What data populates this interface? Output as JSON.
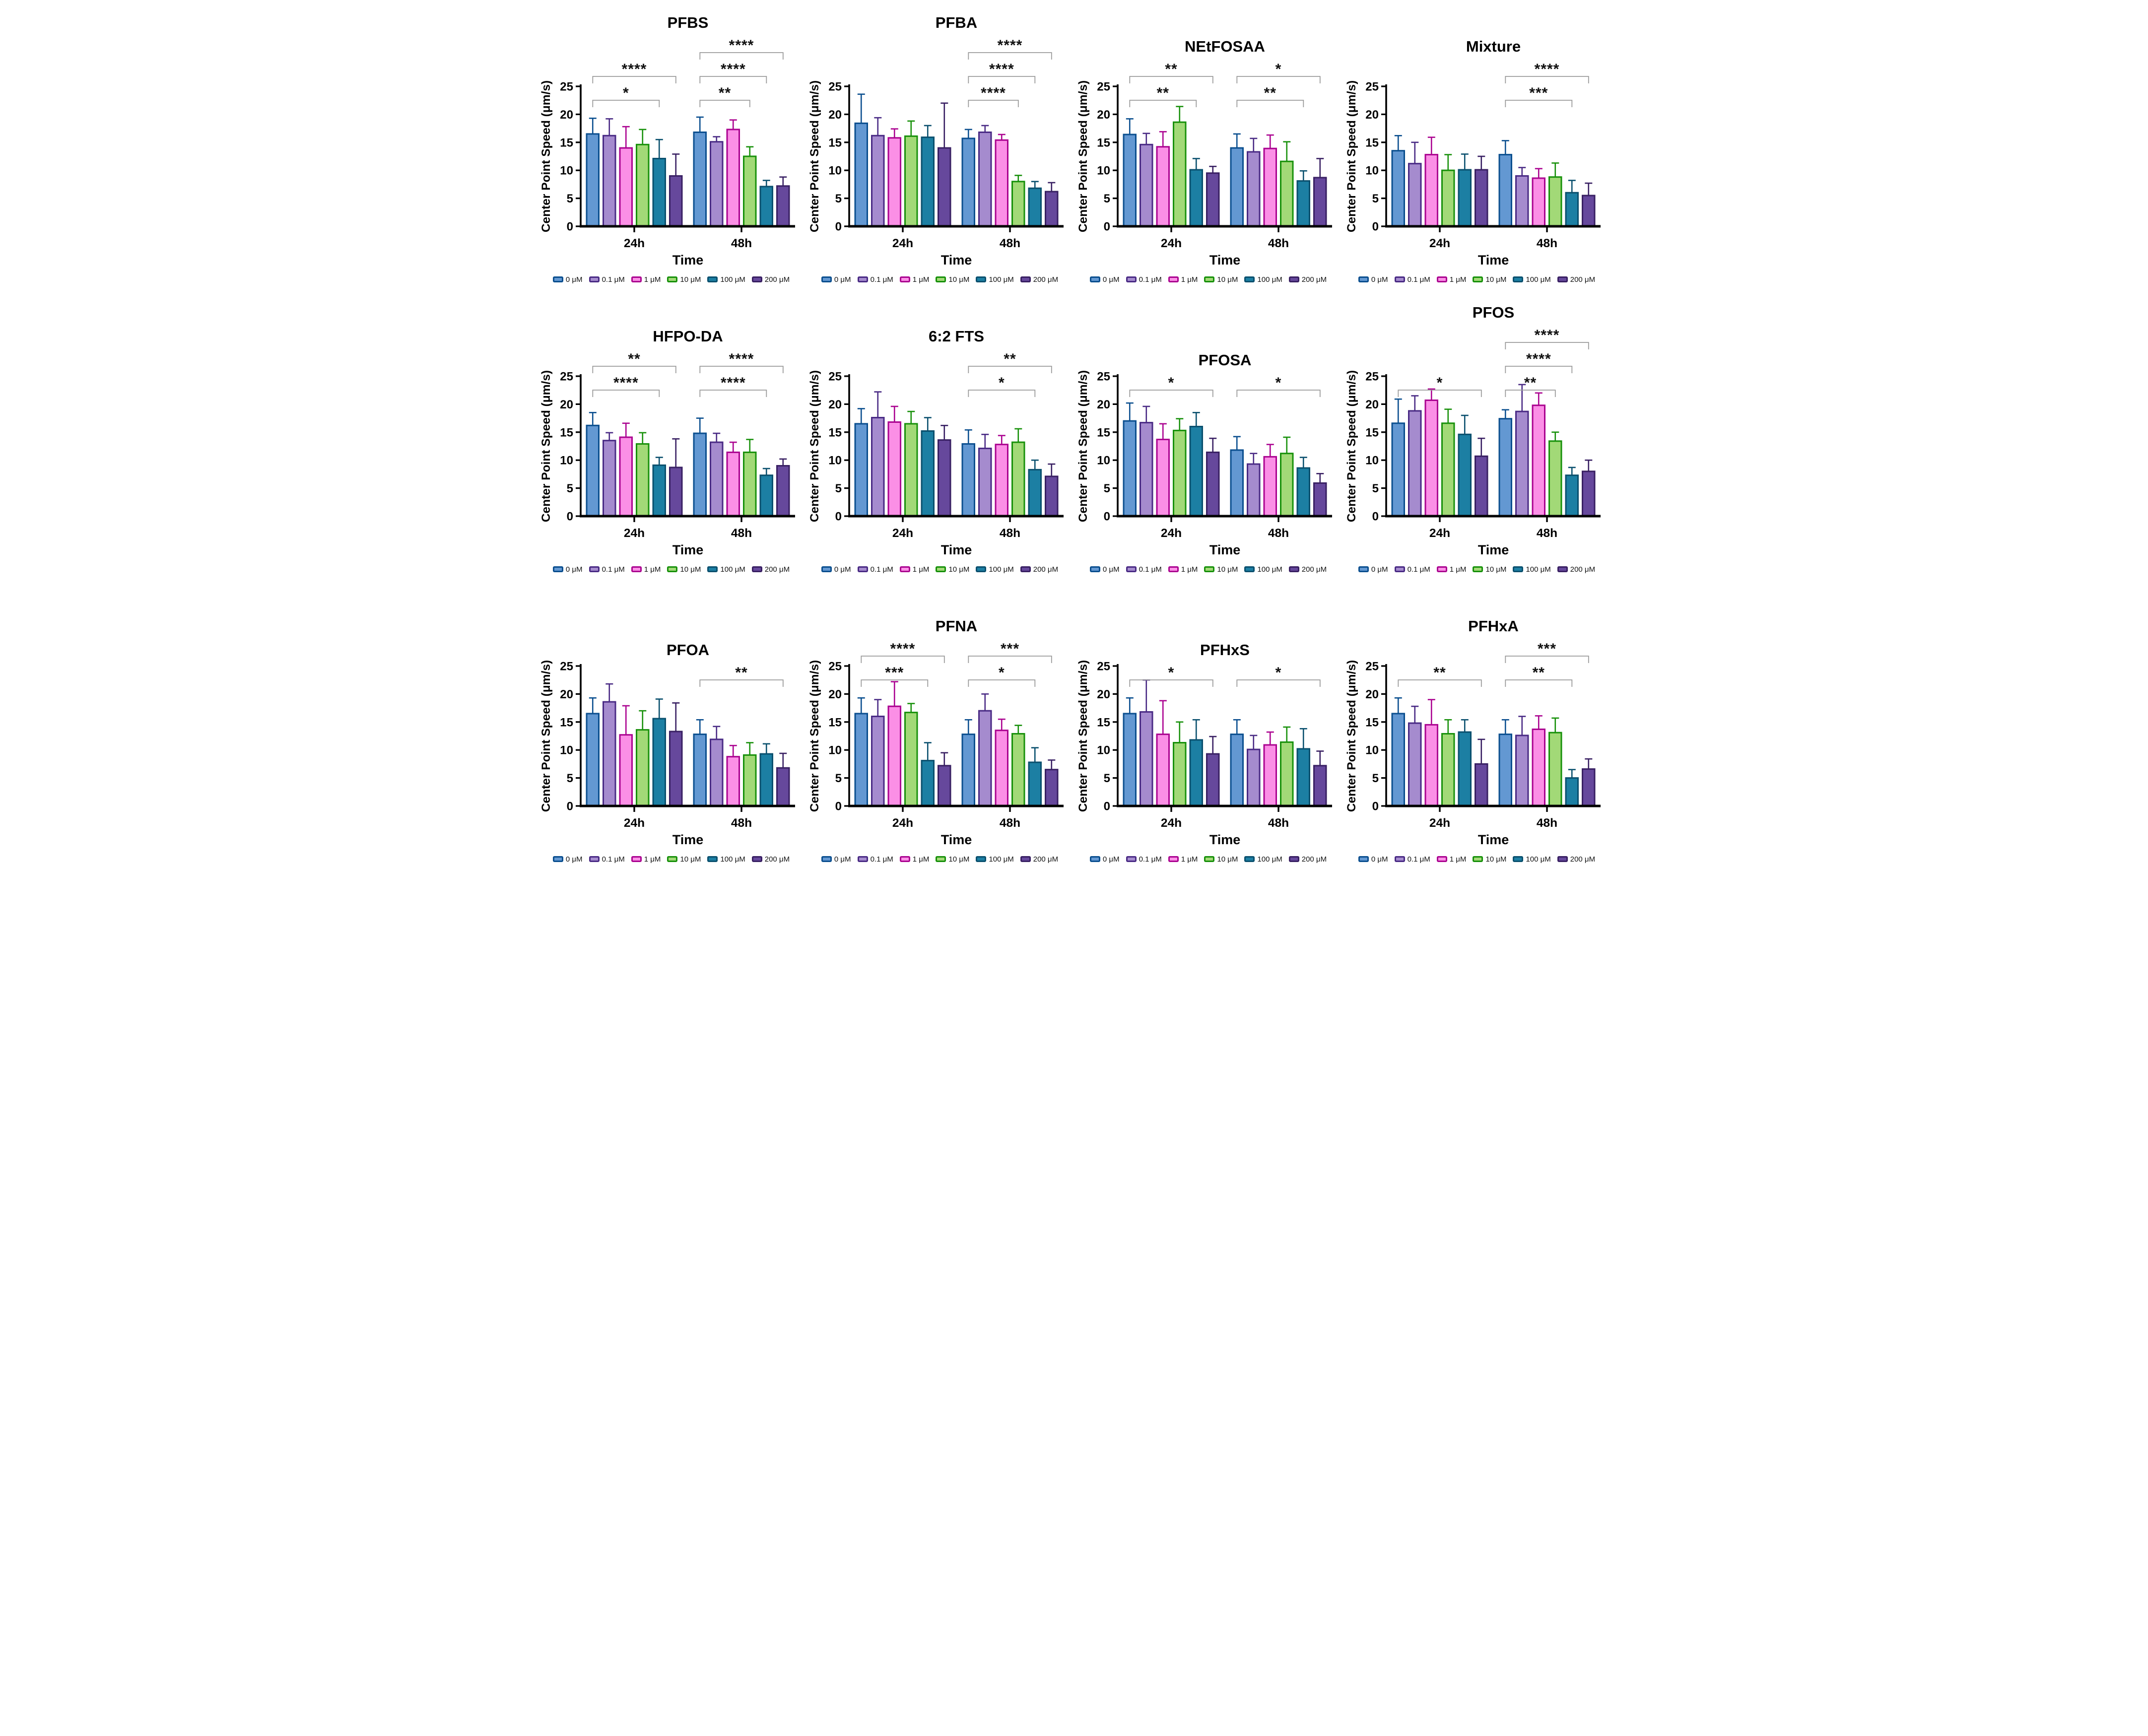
{
  "figure": {
    "y_axis_label": "Center Point Speed (μm/s)",
    "x_axis_label": "Time",
    "categories": [
      "24h",
      "48h"
    ],
    "y_ticks": [
      "0",
      "5",
      "10",
      "15",
      "20",
      "25"
    ],
    "ylim": [
      0,
      25
    ],
    "grid": "off",
    "legend_position": "bottom",
    "bracket_color": "#9C9C9C",
    "sig_text_color": "#111111",
    "axis_color": "#000000",
    "series": [
      {
        "name": "0 μM",
        "fill": "#6398D2",
        "stroke": "#0B4F8F"
      },
      {
        "name": "0.1 μM",
        "fill": "#A58BCE",
        "stroke": "#4A2B85"
      },
      {
        "name": "1 μM",
        "fill": "#FB8FE6",
        "stroke": "#AB0390"
      },
      {
        "name": "10 μM",
        "fill": "#A2D977",
        "stroke": "#18910B"
      },
      {
        "name": "100 μM",
        "fill": "#1C7FA3",
        "stroke": "#0A506E"
      },
      {
        "name": "200 μM",
        "fill": "#66489C",
        "stroke": "#392063"
      }
    ]
  },
  "chart_data": [
    {
      "type": "bar",
      "title": "PFBS",
      "groups": [
        {
          "category": "24h",
          "means": [
            16.5,
            16.2,
            14.0,
            14.6,
            12.1,
            9.0
          ],
          "sd_upper": [
            2.8,
            3.0,
            3.8,
            2.7,
            3.4,
            3.9
          ]
        },
        {
          "category": "48h",
          "means": [
            16.8,
            15.1,
            17.3,
            12.5,
            7.1,
            7.2
          ],
          "sd_upper": [
            2.7,
            0.9,
            1.7,
            1.7,
            1.1,
            1.6
          ]
        }
      ],
      "significance": [
        {
          "category": "24h",
          "from": "0 μM",
          "to": "100 μM",
          "to_index": 4,
          "level": 0,
          "label": "*"
        },
        {
          "category": "24h",
          "from": "0 μM",
          "to": "200 μM",
          "to_index": 5,
          "level": 1,
          "label": "****"
        },
        {
          "category": "48h",
          "from": "0 μM",
          "to": "10 μM",
          "to_index": 3,
          "level": 0,
          "label": "**"
        },
        {
          "category": "48h",
          "from": "0 μM",
          "to": "100 μM",
          "to_index": 4,
          "level": 1,
          "label": "****"
        },
        {
          "category": "48h",
          "from": "0 μM",
          "to": "200 μM",
          "to_index": 5,
          "level": 2,
          "label": "****"
        }
      ]
    },
    {
      "type": "bar",
      "title": "PFBA",
      "groups": [
        {
          "category": "24h",
          "means": [
            18.4,
            16.2,
            15.8,
            16.1,
            15.9,
            14.0
          ],
          "sd_upper": [
            5.2,
            3.2,
            1.6,
            2.7,
            2.1,
            8.0
          ]
        },
        {
          "category": "48h",
          "means": [
            15.7,
            16.8,
            15.4,
            8.0,
            6.8,
            6.2
          ],
          "sd_upper": [
            1.6,
            1.2,
            1.0,
            1.1,
            1.2,
            1.6
          ]
        }
      ],
      "significance": [
        {
          "category": "48h",
          "from": "0 μM",
          "to": "10 μM",
          "to_index": 3,
          "level": 0,
          "label": "****"
        },
        {
          "category": "48h",
          "from": "0 μM",
          "to": "100 μM",
          "to_index": 4,
          "level": 1,
          "label": "****"
        },
        {
          "category": "48h",
          "from": "0 μM",
          "to": "200 μM",
          "to_index": 5,
          "level": 2,
          "label": "****"
        }
      ]
    },
    {
      "type": "bar",
      "title": "NEtFOSAA",
      "groups": [
        {
          "category": "24h",
          "means": [
            16.4,
            14.6,
            14.2,
            18.6,
            10.1,
            9.5
          ],
          "sd_upper": [
            2.8,
            2.0,
            2.7,
            2.8,
            2.0,
            1.2
          ]
        },
        {
          "category": "48h",
          "means": [
            14.0,
            13.3,
            13.9,
            11.6,
            8.1,
            8.7
          ],
          "sd_upper": [
            2.5,
            2.4,
            2.4,
            3.5,
            1.8,
            3.4
          ]
        }
      ],
      "significance": [
        {
          "category": "24h",
          "from": "0 μM",
          "to": "100 μM",
          "to_index": 4,
          "level": 0,
          "label": "**"
        },
        {
          "category": "24h",
          "from": "0 μM",
          "to": "200 μM",
          "to_index": 5,
          "level": 1,
          "label": "**"
        },
        {
          "category": "48h",
          "from": "0 μM",
          "to": "100 μM",
          "to_index": 4,
          "level": 0,
          "label": "**"
        },
        {
          "category": "48h",
          "from": "0 μM",
          "to": "200 μM",
          "to_index": 5,
          "level": 1,
          "label": "*"
        }
      ]
    },
    {
      "type": "bar",
      "title": "Mixture",
      "groups": [
        {
          "category": "24h",
          "means": [
            13.5,
            11.2,
            12.8,
            10.0,
            10.1,
            10.1
          ],
          "sd_upper": [
            2.7,
            3.8,
            3.1,
            2.8,
            2.8,
            2.4
          ]
        },
        {
          "category": "48h",
          "means": [
            12.8,
            9.0,
            8.6,
            8.8,
            6.0,
            5.5
          ],
          "sd_upper": [
            2.5,
            1.5,
            1.7,
            2.5,
            2.2,
            2.2
          ]
        }
      ],
      "significance": [
        {
          "category": "48h",
          "from": "0 μM",
          "to": "100 μM",
          "to_index": 4,
          "level": 0,
          "label": "***"
        },
        {
          "category": "48h",
          "from": "0 μM",
          "to": "200 μM",
          "to_index": 5,
          "level": 1,
          "label": "****"
        }
      ]
    },
    {
      "type": "bar",
      "title": "HFPO-DA",
      "groups": [
        {
          "category": "24h",
          "means": [
            16.2,
            13.5,
            14.1,
            12.9,
            9.1,
            8.7
          ],
          "sd_upper": [
            2.3,
            1.4,
            2.5,
            2.0,
            1.4,
            5.1
          ]
        },
        {
          "category": "48h",
          "means": [
            14.8,
            13.2,
            11.4,
            11.4,
            7.3,
            9.0
          ],
          "sd_upper": [
            2.7,
            1.6,
            1.8,
            2.3,
            1.2,
            1.2
          ]
        }
      ],
      "significance": [
        {
          "category": "24h",
          "from": "0 μM",
          "to": "100 μM",
          "to_index": 4,
          "level": 0,
          "label": "****"
        },
        {
          "category": "24h",
          "from": "0 μM",
          "to": "200 μM",
          "to_index": 5,
          "level": 1,
          "label": "**"
        },
        {
          "category": "48h",
          "from": "0 μM",
          "to": "100 μM",
          "to_index": 4,
          "level": 0,
          "label": "****"
        },
        {
          "category": "48h",
          "from": "0 μM",
          "to": "200 μM",
          "to_index": 5,
          "level": 1,
          "label": "****"
        }
      ]
    },
    {
      "type": "bar",
      "title": "6:2 FTS",
      "groups": [
        {
          "category": "24h",
          "means": [
            16.5,
            17.6,
            16.8,
            16.5,
            15.2,
            13.6
          ],
          "sd_upper": [
            2.7,
            4.6,
            2.8,
            2.2,
            2.4,
            2.6
          ]
        },
        {
          "category": "48h",
          "means": [
            12.9,
            12.1,
            12.8,
            13.2,
            8.3,
            7.1
          ],
          "sd_upper": [
            2.5,
            2.5,
            1.6,
            2.4,
            1.7,
            2.2
          ]
        }
      ],
      "significance": [
        {
          "category": "48h",
          "from": "0 μM",
          "to": "100 μM",
          "to_index": 4,
          "level": 0,
          "label": "*"
        },
        {
          "category": "48h",
          "from": "0 μM",
          "to": "200 μM",
          "to_index": 5,
          "level": 1,
          "label": "**"
        }
      ]
    },
    {
      "type": "bar",
      "title": "PFOSA",
      "groups": [
        {
          "category": "24h",
          "means": [
            17.0,
            16.7,
            13.7,
            15.3,
            16.0,
            11.4
          ],
          "sd_upper": [
            3.2,
            2.9,
            2.8,
            2.1,
            2.5,
            2.5
          ]
        },
        {
          "category": "48h",
          "means": [
            11.8,
            9.3,
            10.6,
            11.2,
            8.6,
            5.9
          ],
          "sd_upper": [
            2.4,
            1.9,
            2.2,
            2.9,
            1.9,
            1.7
          ]
        }
      ],
      "significance": [
        {
          "category": "24h",
          "from": "0 μM",
          "to": "200 μM",
          "to_index": 5,
          "level": 0,
          "label": "*"
        },
        {
          "category": "48h",
          "from": "0 μM",
          "to": "200 μM",
          "to_index": 5,
          "level": 0,
          "label": "*"
        }
      ]
    },
    {
      "type": "bar",
      "title": "PFOS",
      "groups": [
        {
          "category": "24h",
          "means": [
            16.6,
            18.8,
            20.7,
            16.6,
            14.6,
            10.7
          ],
          "sd_upper": [
            4.3,
            2.7,
            2.0,
            2.5,
            3.4,
            3.2
          ]
        },
        {
          "category": "48h",
          "means": [
            17.4,
            18.7,
            19.8,
            13.4,
            7.3,
            8.0
          ],
          "sd_upper": [
            1.6,
            4.8,
            2.2,
            1.6,
            1.4,
            2.0
          ]
        }
      ],
      "significance": [
        {
          "category": "24h",
          "from": "0 μM",
          "to": "200 μM",
          "to_index": 5,
          "level": 0,
          "label": "*"
        },
        {
          "category": "48h",
          "from": "0 μM",
          "to": "10 μM",
          "to_index": 3,
          "level": 0,
          "label": "**"
        },
        {
          "category": "48h",
          "from": "0 μM",
          "to": "100 μM",
          "to_index": 4,
          "level": 1,
          "label": "****"
        },
        {
          "category": "48h",
          "from": "0 μM",
          "to": "200 μM",
          "to_index": 5,
          "level": 2,
          "label": "****"
        }
      ]
    },
    {
      "type": "bar",
      "title": "PFOA",
      "groups": [
        {
          "category": "24h",
          "means": [
            16.5,
            18.6,
            12.7,
            13.6,
            15.6,
            13.3
          ],
          "sd_upper": [
            2.8,
            3.2,
            5.2,
            3.4,
            3.5,
            5.1
          ]
        },
        {
          "category": "48h",
          "means": [
            12.8,
            11.9,
            8.8,
            9.1,
            9.3,
            6.8
          ],
          "sd_upper": [
            2.6,
            2.3,
            2.0,
            2.2,
            1.8,
            2.6
          ]
        }
      ],
      "significance": [
        {
          "category": "48h",
          "from": "0 μM",
          "to": "200 μM",
          "to_index": 5,
          "level": 0,
          "label": "**"
        }
      ]
    },
    {
      "type": "bar",
      "title": "PFNA",
      "groups": [
        {
          "category": "24h",
          "means": [
            16.5,
            16.0,
            17.8,
            16.7,
            8.1,
            7.2
          ],
          "sd_upper": [
            2.8,
            3.0,
            4.4,
            1.6,
            3.2,
            2.3
          ]
        },
        {
          "category": "48h",
          "means": [
            12.8,
            17.0,
            13.5,
            12.9,
            7.8,
            6.5
          ],
          "sd_upper": [
            2.6,
            3.0,
            2.0,
            1.5,
            2.6,
            1.7
          ]
        }
      ],
      "significance": [
        {
          "category": "24h",
          "from": "0 μM",
          "to": "100 μM",
          "to_index": 4,
          "level": 0,
          "label": "***"
        },
        {
          "category": "24h",
          "from": "0 μM",
          "to": "200 μM",
          "to_index": 5,
          "level": 1,
          "label": "****"
        },
        {
          "category": "48h",
          "from": "0 μM",
          "to": "100 μM",
          "to_index": 4,
          "level": 0,
          "label": "*"
        },
        {
          "category": "48h",
          "from": "0 μM",
          "to": "200 μM",
          "to_index": 5,
          "level": 1,
          "label": "***"
        }
      ]
    },
    {
      "type": "bar",
      "title": "PFHxS",
      "groups": [
        {
          "category": "24h",
          "means": [
            16.5,
            16.8,
            12.8,
            11.3,
            11.8,
            9.3
          ],
          "sd_upper": [
            2.8,
            5.7,
            6.0,
            3.7,
            3.6,
            3.1
          ]
        },
        {
          "category": "48h",
          "means": [
            12.8,
            10.1,
            10.9,
            11.4,
            10.2,
            7.2
          ],
          "sd_upper": [
            2.6,
            2.5,
            2.3,
            2.7,
            3.6,
            2.6
          ]
        }
      ],
      "significance": [
        {
          "category": "24h",
          "from": "0 μM",
          "to": "200 μM",
          "to_index": 5,
          "level": 0,
          "label": "*"
        },
        {
          "category": "48h",
          "from": "0 μM",
          "to": "200 μM",
          "to_index": 5,
          "level": 0,
          "label": "*"
        }
      ]
    },
    {
      "type": "bar",
      "title": "PFHxA",
      "groups": [
        {
          "category": "24h",
          "means": [
            16.5,
            14.8,
            14.5,
            12.9,
            13.2,
            7.5
          ],
          "sd_upper": [
            2.8,
            3.0,
            4.5,
            2.5,
            2.2,
            4.4
          ]
        },
        {
          "category": "48h",
          "means": [
            12.8,
            12.6,
            13.7,
            13.1,
            5.0,
            6.6
          ],
          "sd_upper": [
            2.6,
            3.4,
            2.4,
            2.6,
            1.5,
            1.8
          ]
        }
      ],
      "significance": [
        {
          "category": "24h",
          "from": "0 μM",
          "to": "200 μM",
          "to_index": 5,
          "level": 0,
          "label": "**"
        },
        {
          "category": "48h",
          "from": "0 μM",
          "to": "100 μM",
          "to_index": 4,
          "level": 0,
          "label": "**"
        },
        {
          "category": "48h",
          "from": "0 μM",
          "to": "200 μM",
          "to_index": 5,
          "level": 1,
          "label": "***"
        }
      ]
    }
  ]
}
